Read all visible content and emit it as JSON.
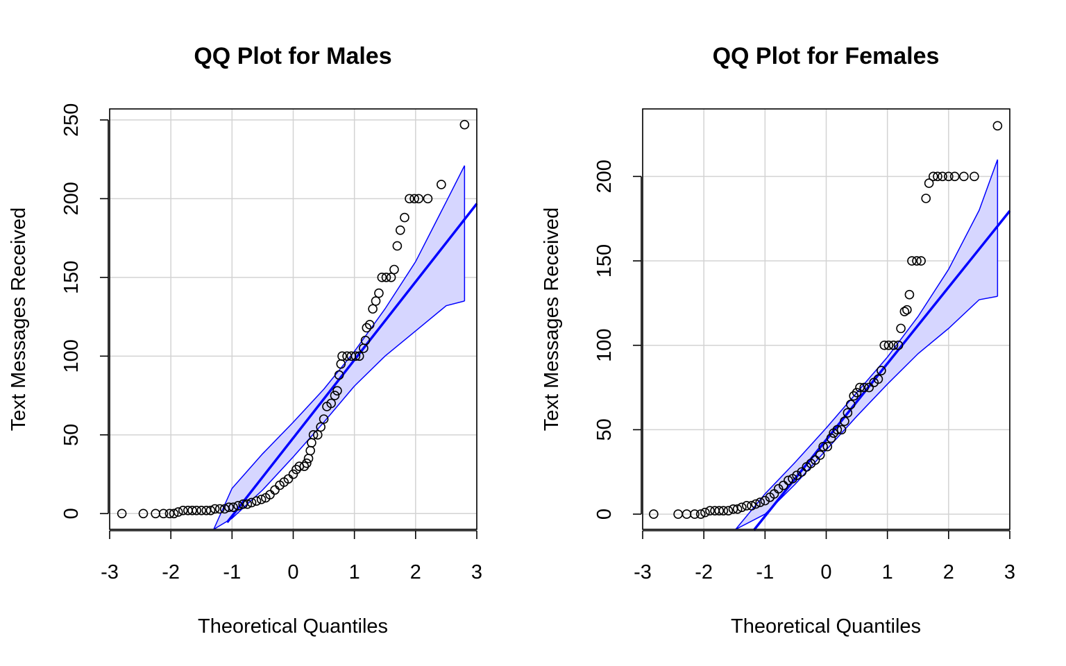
{
  "chart_data": [
    {
      "type": "scatter",
      "title": "QQ Plot for Males",
      "xlabel": "Theoretical Quantiles",
      "ylabel": "Text Messages Received",
      "xlim": [
        -3,
        3
      ],
      "ylim": [
        -10,
        257
      ],
      "xticks": [
        "-3",
        "-2",
        "-1",
        "0",
        "1",
        "2",
        "3"
      ],
      "yticks": [
        "0",
        "50",
        "100",
        "150",
        "200",
        "250"
      ],
      "grid": true,
      "colors": {
        "points": "#000000",
        "line": "#0000ff",
        "band_fill": "#d6d6ff"
      },
      "reference_line": {
        "intercept": 48,
        "slope": 49.6,
        "x_start": -1.08,
        "x_end": 3.0
      },
      "confidence_band": {
        "x": [
          -1.3,
          -1.0,
          -0.5,
          0.0,
          0.5,
          1.0,
          1.5,
          2.0,
          2.5,
          2.8
        ],
        "lower": [
          -10,
          -3,
          15,
          36,
          58,
          81,
          100,
          116,
          132,
          135
        ],
        "upper": [
          -10,
          16,
          38,
          58,
          79,
          103,
          130,
          160,
          198,
          221
        ]
      },
      "points": [
        [
          -2.8,
          0
        ],
        [
          -2.45,
          0
        ],
        [
          -2.25,
          0
        ],
        [
          -2.12,
          0
        ],
        [
          -2.02,
          0
        ],
        [
          -1.95,
          0
        ],
        [
          -1.88,
          1
        ],
        [
          -1.8,
          2
        ],
        [
          -1.72,
          2
        ],
        [
          -1.65,
          2
        ],
        [
          -1.58,
          2
        ],
        [
          -1.5,
          2
        ],
        [
          -1.42,
          2
        ],
        [
          -1.35,
          2
        ],
        [
          -1.28,
          3
        ],
        [
          -1.2,
          3
        ],
        [
          -1.12,
          3
        ],
        [
          -1.05,
          4
        ],
        [
          -0.98,
          4
        ],
        [
          -0.9,
          5
        ],
        [
          -0.82,
          6
        ],
        [
          -0.75,
          6
        ],
        [
          -0.68,
          7
        ],
        [
          -0.6,
          8
        ],
        [
          -0.52,
          9
        ],
        [
          -0.45,
          10
        ],
        [
          -0.38,
          12
        ],
        [
          -0.3,
          15
        ],
        [
          -0.22,
          18
        ],
        [
          -0.15,
          20
        ],
        [
          -0.08,
          22
        ],
        [
          0.0,
          25
        ],
        [
          0.05,
          28
        ],
        [
          0.1,
          30
        ],
        [
          0.18,
          30
        ],
        [
          0.22,
          32
        ],
        [
          0.25,
          35
        ],
        [
          0.28,
          40
        ],
        [
          0.3,
          45
        ],
        [
          0.33,
          50
        ],
        [
          0.4,
          50
        ],
        [
          0.45,
          55
        ],
        [
          0.5,
          60
        ],
        [
          0.55,
          68
        ],
        [
          0.62,
          70
        ],
        [
          0.68,
          75
        ],
        [
          0.72,
          78
        ],
        [
          0.75,
          88
        ],
        [
          0.78,
          95
        ],
        [
          0.8,
          100
        ],
        [
          0.88,
          100
        ],
        [
          0.95,
          100
        ],
        [
          1.02,
          100
        ],
        [
          1.08,
          100
        ],
        [
          1.15,
          105
        ],
        [
          1.18,
          110
        ],
        [
          1.2,
          118
        ],
        [
          1.25,
          120
        ],
        [
          1.3,
          130
        ],
        [
          1.35,
          135
        ],
        [
          1.4,
          140
        ],
        [
          1.45,
          150
        ],
        [
          1.52,
          150
        ],
        [
          1.6,
          150
        ],
        [
          1.65,
          155
        ],
        [
          1.7,
          170
        ],
        [
          1.75,
          180
        ],
        [
          1.82,
          188
        ],
        [
          1.9,
          200
        ],
        [
          1.98,
          200
        ],
        [
          2.05,
          200
        ],
        [
          2.2,
          200
        ],
        [
          2.42,
          209
        ],
        [
          2.8,
          247
        ]
      ]
    },
    {
      "type": "scatter",
      "title": "QQ Plot for Females",
      "xlabel": "Theoretical Quantiles",
      "ylabel": "Text Messages Received",
      "xlim": [
        -3,
        3
      ],
      "ylim": [
        -9,
        240
      ],
      "xticks": [
        "-3",
        "-2",
        "-1",
        "0",
        "1",
        "2",
        "3"
      ],
      "yticks": [
        "0",
        "50",
        "100",
        "150",
        "200"
      ],
      "grid": true,
      "colors": {
        "points": "#000000",
        "line": "#0000ff",
        "band_fill": "#d6d6ff"
      },
      "reference_line": {
        "intercept": 44,
        "slope": 45.2,
        "x_start": -1.18,
        "x_end": 3.0
      },
      "confidence_band": {
        "x": [
          -1.48,
          -1.0,
          -0.5,
          0.0,
          0.5,
          1.0,
          1.5,
          2.0,
          2.5,
          2.8
        ],
        "lower": [
          -9,
          0,
          18,
          38,
          58,
          77,
          95,
          110,
          127,
          129
        ],
        "upper": [
          -9,
          12,
          31,
          51,
          72,
          93,
          117,
          145,
          180,
          210
        ]
      },
      "points": [
        [
          -2.82,
          0
        ],
        [
          -2.42,
          0
        ],
        [
          -2.28,
          0
        ],
        [
          -2.15,
          0
        ],
        [
          -2.05,
          0
        ],
        [
          -1.98,
          1
        ],
        [
          -1.9,
          2
        ],
        [
          -1.82,
          2
        ],
        [
          -1.75,
          2
        ],
        [
          -1.68,
          2
        ],
        [
          -1.6,
          2
        ],
        [
          -1.52,
          3
        ],
        [
          -1.45,
          3
        ],
        [
          -1.38,
          4
        ],
        [
          -1.3,
          5
        ],
        [
          -1.22,
          5
        ],
        [
          -1.15,
          6
        ],
        [
          -1.08,
          7
        ],
        [
          -1.0,
          8
        ],
        [
          -0.92,
          10
        ],
        [
          -0.85,
          12
        ],
        [
          -0.78,
          15
        ],
        [
          -0.7,
          17
        ],
        [
          -0.62,
          20
        ],
        [
          -0.55,
          21
        ],
        [
          -0.48,
          23
        ],
        [
          -0.4,
          25
        ],
        [
          -0.32,
          28
        ],
        [
          -0.25,
          30
        ],
        [
          -0.18,
          32
        ],
        [
          -0.1,
          35
        ],
        [
          -0.05,
          40
        ],
        [
          0.02,
          40
        ],
        [
          0.08,
          45
        ],
        [
          0.12,
          48
        ],
        [
          0.18,
          50
        ],
        [
          0.25,
          50
        ],
        [
          0.3,
          55
        ],
        [
          0.35,
          60
        ],
        [
          0.4,
          65
        ],
        [
          0.45,
          70
        ],
        [
          0.5,
          72
        ],
        [
          0.55,
          75
        ],
        [
          0.62,
          75
        ],
        [
          0.7,
          75
        ],
        [
          0.78,
          78
        ],
        [
          0.85,
          80
        ],
        [
          0.9,
          85
        ],
        [
          0.95,
          100
        ],
        [
          1.02,
          100
        ],
        [
          1.1,
          100
        ],
        [
          1.18,
          100
        ],
        [
          1.22,
          110
        ],
        [
          1.28,
          120
        ],
        [
          1.32,
          121
        ],
        [
          1.36,
          130
        ],
        [
          1.4,
          150
        ],
        [
          1.48,
          150
        ],
        [
          1.55,
          150
        ],
        [
          1.63,
          187
        ],
        [
          1.68,
          196
        ],
        [
          1.75,
          200
        ],
        [
          1.82,
          200
        ],
        [
          1.9,
          200
        ],
        [
          2.0,
          200
        ],
        [
          2.1,
          200
        ],
        [
          2.25,
          200
        ],
        [
          2.42,
          200
        ],
        [
          2.8,
          230
        ]
      ]
    }
  ]
}
